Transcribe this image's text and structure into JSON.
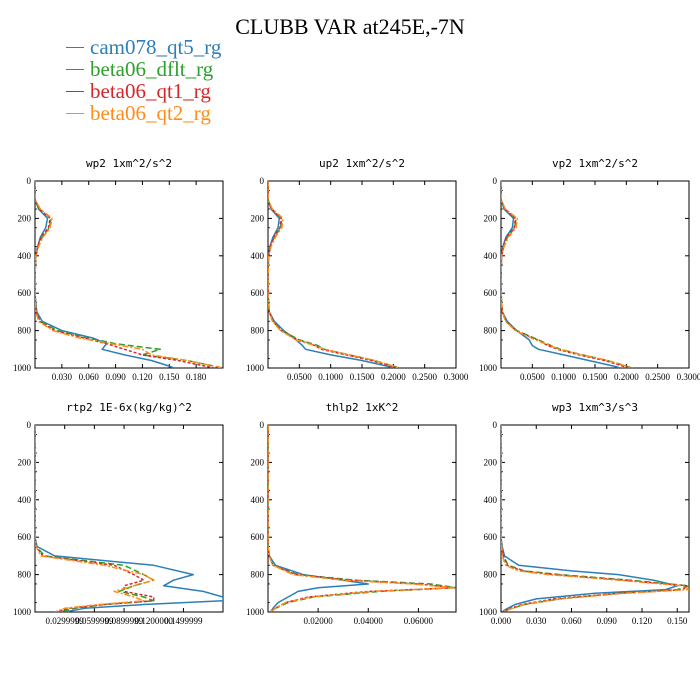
{
  "title": "CLUBB VAR at245E,-7N",
  "legend": [
    {
      "label": "cam078_qt5_rg",
      "color": "#2c7fb8",
      "dash": ""
    },
    {
      "label": "beta06_dflt_rg",
      "color": "#2ca02c",
      "dash": "6,3"
    },
    {
      "label": "beta06_qt1_rg",
      "color": "#d62728",
      "dash": "3,2"
    },
    {
      "label": "beta06_qt2_rg",
      "color": "#ff8c1a",
      "dash": "6,2,2,2"
    }
  ],
  "chart_data": [
    {
      "type": "line",
      "title": "wp2  1xm^2/s^2",
      "xlim": [
        0,
        0.21
      ],
      "ylim": [
        1000,
        0
      ],
      "xticks": [
        "0.030",
        "0.060",
        "0.090",
        "0.120",
        "0.150",
        "0.180"
      ],
      "xtick_values": [
        0.03,
        0.06,
        0.09,
        0.12,
        0.15,
        0.18
      ],
      "yticks": [
        "0",
        "200",
        "400",
        "600",
        "800",
        "1000"
      ],
      "y": [
        0,
        100,
        150,
        200,
        250,
        300,
        350,
        400,
        500,
        600,
        700,
        750,
        800,
        840,
        870,
        900,
        930,
        960,
        990,
        1000
      ],
      "series": [
        {
          "name": "cam078_qt5_rg",
          "x": [
            0,
            0,
            0.004,
            0.014,
            0.012,
            0.006,
            0.003,
            0.001,
            0,
            0,
            0.002,
            0.008,
            0.03,
            0.065,
            0.08,
            0.075,
            0.1,
            0.13,
            0.15,
            0.155
          ]
        },
        {
          "name": "beta06_dflt_rg",
          "x": [
            0,
            0,
            0.005,
            0.018,
            0.016,
            0.008,
            0.003,
            0.001,
            0,
            0,
            0.001,
            0.006,
            0.025,
            0.06,
            0.09,
            0.14,
            0.12,
            0.17,
            0.2,
            0.21
          ]
        },
        {
          "name": "beta06_qt1_rg",
          "x": [
            0,
            0,
            0.005,
            0.017,
            0.015,
            0.007,
            0.003,
            0.001,
            0,
            0,
            0.001,
            0.005,
            0.022,
            0.055,
            0.08,
            0.1,
            0.12,
            0.16,
            0.19,
            0.2
          ]
        },
        {
          "name": "beta06_qt2_rg",
          "x": [
            0,
            0,
            0.006,
            0.019,
            0.017,
            0.009,
            0.004,
            0.001,
            0,
            0,
            0.001,
            0.004,
            0.02,
            0.05,
            0.085,
            0.12,
            0.13,
            0.17,
            0.2,
            0.21
          ]
        }
      ]
    },
    {
      "type": "line",
      "title": "up2  1xm^2/s^2",
      "xlim": [
        0,
        0.3
      ],
      "ylim": [
        1000,
        0
      ],
      "xticks": [
        "0.0500",
        "0.1000",
        "0.1500",
        "0.2000",
        "0.2500",
        "0.3000"
      ],
      "xtick_values": [
        0.05,
        0.1,
        0.15,
        0.2,
        0.25,
        0.3
      ],
      "yticks": [
        "0",
        "200",
        "400",
        "600",
        "800",
        "1000"
      ],
      "y": [
        0,
        100,
        150,
        200,
        250,
        300,
        350,
        400,
        500,
        600,
        700,
        750,
        800,
        850,
        880,
        900,
        930,
        960,
        990,
        1000
      ],
      "series": [
        {
          "name": "cam078_qt5_rg",
          "x": [
            0,
            0,
            0.005,
            0.018,
            0.016,
            0.008,
            0.003,
            0.001,
            0,
            0,
            0.002,
            0.01,
            0.025,
            0.045,
            0.055,
            0.06,
            0.1,
            0.15,
            0.19,
            0.2
          ]
        },
        {
          "name": "beta06_dflt_rg",
          "x": [
            0,
            0,
            0.006,
            0.022,
            0.02,
            0.01,
            0.004,
            0.001,
            0,
            0,
            0.002,
            0.008,
            0.022,
            0.05,
            0.08,
            0.09,
            0.13,
            0.17,
            0.2,
            0.21
          ]
        },
        {
          "name": "beta06_qt1_rg",
          "x": [
            0,
            0,
            0.006,
            0.021,
            0.019,
            0.009,
            0.004,
            0.001,
            0,
            0,
            0.002,
            0.008,
            0.021,
            0.048,
            0.075,
            0.085,
            0.125,
            0.165,
            0.195,
            0.205
          ]
        },
        {
          "name": "beta06_qt2_rg",
          "x": [
            0,
            0,
            0.007,
            0.024,
            0.022,
            0.012,
            0.005,
            0.001,
            0,
            0,
            0.002,
            0.007,
            0.02,
            0.045,
            0.075,
            0.09,
            0.13,
            0.17,
            0.2,
            0.21
          ]
        }
      ]
    },
    {
      "type": "line",
      "title": "vp2  1xm^2/s^2",
      "xlim": [
        0,
        0.3
      ],
      "ylim": [
        1000,
        0
      ],
      "xticks": [
        "0.0500",
        "0.1000",
        "0.1500",
        "0.2000",
        "0.2500",
        "0.3000"
      ],
      "xtick_values": [
        0.05,
        0.1,
        0.15,
        0.2,
        0.25,
        0.3
      ],
      "yticks": [
        "0",
        "200",
        "400",
        "600",
        "800",
        "1000"
      ],
      "y": [
        0,
        100,
        150,
        200,
        250,
        300,
        350,
        400,
        500,
        600,
        700,
        750,
        800,
        850,
        880,
        900,
        930,
        960,
        990,
        1000
      ],
      "series": [
        {
          "name": "cam078_qt5_rg",
          "x": [
            0,
            0,
            0.005,
            0.02,
            0.018,
            0.008,
            0.003,
            0.001,
            0,
            0,
            0.002,
            0.01,
            0.025,
            0.045,
            0.05,
            0.06,
            0.1,
            0.14,
            0.18,
            0.19
          ]
        },
        {
          "name": "beta06_dflt_rg",
          "x": [
            0,
            0,
            0.006,
            0.024,
            0.022,
            0.01,
            0.004,
            0.001,
            0,
            0,
            0.002,
            0.008,
            0.025,
            0.06,
            0.08,
            0.095,
            0.13,
            0.17,
            0.2,
            0.21
          ]
        },
        {
          "name": "beta06_qt1_rg",
          "x": [
            0,
            0,
            0.006,
            0.023,
            0.021,
            0.009,
            0.004,
            0.001,
            0,
            0,
            0.002,
            0.008,
            0.024,
            0.058,
            0.075,
            0.09,
            0.125,
            0.165,
            0.195,
            0.205
          ]
        },
        {
          "name": "beta06_qt2_rg",
          "x": [
            0,
            0,
            0.007,
            0.026,
            0.024,
            0.012,
            0.005,
            0.001,
            0,
            0,
            0.002,
            0.007,
            0.023,
            0.055,
            0.078,
            0.093,
            0.13,
            0.17,
            0.2,
            0.21
          ]
        }
      ]
    },
    {
      "type": "line",
      "title": "rtp2  1E-6x(kg/kg)^2",
      "xlim": [
        0,
        0.19
      ],
      "ylim": [
        1000,
        0
      ],
      "xticks": [
        "0.0299999",
        "0.0599999",
        "0.0899999",
        "0.1200000",
        "0.1499999"
      ],
      "xtick_values": [
        0.03,
        0.06,
        0.09,
        0.12,
        0.15
      ],
      "yticks": [
        "0",
        "200",
        "400",
        "600",
        "800",
        "1000"
      ],
      "y": [
        0,
        600,
        650,
        700,
        750,
        800,
        830,
        860,
        890,
        920,
        940,
        960,
        980,
        1000
      ],
      "series": [
        {
          "name": "cam078_qt5_rg",
          "x": [
            0,
            0,
            0.002,
            0.02,
            0.12,
            0.16,
            0.14,
            0.13,
            0.17,
            0.19,
            0.19,
            0.11,
            0.05,
            0.03
          ]
        },
        {
          "name": "beta06_dflt_rg",
          "x": [
            0,
            0,
            0.001,
            0.01,
            0.09,
            0.11,
            0.12,
            0.1,
            0.085,
            0.11,
            0.12,
            0.07,
            0.04,
            0.025
          ]
        },
        {
          "name": "beta06_qt1_rg",
          "x": [
            0,
            0,
            0.001,
            0.008,
            0.08,
            0.1,
            0.11,
            0.09,
            0.09,
            0.12,
            0.12,
            0.07,
            0.035,
            0.02
          ]
        },
        {
          "name": "beta06_qt2_rg",
          "x": [
            0,
            0,
            0.001,
            0.006,
            0.07,
            0.11,
            0.12,
            0.1,
            0.08,
            0.1,
            0.11,
            0.065,
            0.03,
            0.02
          ]
        }
      ]
    },
    {
      "type": "line",
      "title": "thlp2  1xK^2",
      "xlim": [
        0,
        0.075
      ],
      "ylim": [
        1000,
        0
      ],
      "xticks": [
        "0.02000",
        "0.04000",
        "0.06000"
      ],
      "xtick_values": [
        0.02,
        0.04,
        0.06
      ],
      "yticks": [
        "0",
        "200",
        "400",
        "600",
        "800",
        "1000"
      ],
      "y": [
        0,
        600,
        650,
        700,
        750,
        800,
        830,
        850,
        870,
        890,
        920,
        950,
        980,
        1000
      ],
      "series": [
        {
          "name": "cam078_qt5_rg",
          "x": [
            0,
            0,
            0,
            0.0005,
            0.003,
            0.014,
            0.03,
            0.04,
            0.02,
            0.012,
            0.008,
            0.004,
            0.002,
            0.001
          ]
        },
        {
          "name": "beta06_dflt_rg",
          "x": [
            0,
            0,
            0,
            0.0005,
            0.002,
            0.012,
            0.035,
            0.065,
            0.075,
            0.045,
            0.018,
            0.008,
            0.003,
            0.001
          ]
        },
        {
          "name": "beta06_qt1_rg",
          "x": [
            0,
            0,
            0,
            0.0005,
            0.002,
            0.011,
            0.033,
            0.06,
            0.075,
            0.04,
            0.016,
            0.007,
            0.003,
            0.001
          ]
        },
        {
          "name": "beta06_qt2_rg",
          "x": [
            0,
            0,
            0,
            0.0004,
            0.002,
            0.01,
            0.03,
            0.058,
            0.074,
            0.042,
            0.017,
            0.007,
            0.003,
            0.001
          ]
        }
      ]
    },
    {
      "type": "line",
      "title": "wp3  1xm^3/s^3",
      "xlim": [
        0,
        0.16
      ],
      "ylim": [
        1000,
        0
      ],
      "xticks": [
        "0.000",
        "0.030",
        "0.060",
        "0.090",
        "0.120",
        "0.150"
      ],
      "xtick_values": [
        0,
        0.03,
        0.06,
        0.09,
        0.12,
        0.15
      ],
      "yticks": [
        "0",
        "200",
        "400",
        "600",
        "800",
        "1000"
      ],
      "y": [
        0,
        600,
        650,
        700,
        750,
        780,
        800,
        830,
        860,
        880,
        900,
        930,
        960,
        990,
        1000
      ],
      "series": [
        {
          "name": "cam078_qt5_rg",
          "x": [
            0,
            0,
            0.001,
            0.003,
            0.015,
            0.06,
            0.1,
            0.13,
            0.15,
            0.14,
            0.08,
            0.03,
            0.012,
            0.003,
            0.001
          ]
        },
        {
          "name": "beta06_dflt_rg",
          "x": [
            0,
            0,
            0.0005,
            0.002,
            0.006,
            0.02,
            0.05,
            0.11,
            0.16,
            0.15,
            0.1,
            0.05,
            0.02,
            0.005,
            0.001
          ]
        },
        {
          "name": "beta06_qt1_rg",
          "x": [
            0,
            0,
            0.0005,
            0.002,
            0.005,
            0.018,
            0.045,
            0.105,
            0.158,
            0.155,
            0.1,
            0.045,
            0.018,
            0.004,
            0.001
          ]
        },
        {
          "name": "beta06_qt2_rg",
          "x": [
            0,
            0,
            0.0005,
            0.001,
            0.004,
            0.015,
            0.04,
            0.1,
            0.155,
            0.16,
            0.105,
            0.05,
            0.02,
            0.005,
            0.001
          ]
        }
      ]
    }
  ]
}
